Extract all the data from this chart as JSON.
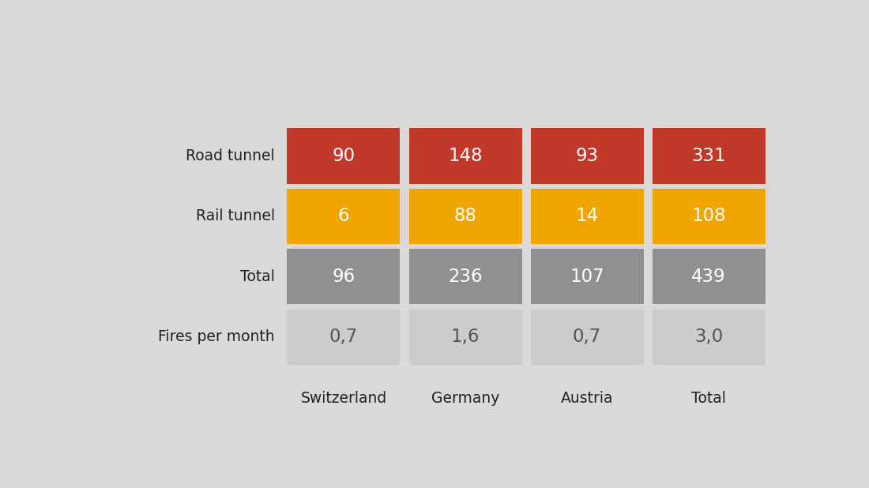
{
  "rows": [
    "Road tunnel",
    "Rail tunnel",
    "Total",
    "Fires per month"
  ],
  "columns": [
    "Switzerland",
    "Germany",
    "Austria",
    "Total"
  ],
  "values": [
    [
      "90",
      "148",
      "93",
      "331"
    ],
    [
      "6",
      "88",
      "14",
      "108"
    ],
    [
      "96",
      "236",
      "107",
      "439"
    ],
    [
      "0,7",
      "1,6",
      "0,7",
      "3,0"
    ]
  ],
  "row_colors": [
    "#c0392b",
    "#f0a500",
    "#909090",
    "#cccccc"
  ],
  "text_colors": [
    "#ffffff",
    "#ffffff",
    "#ffffff",
    "#555555"
  ],
  "background_color": "#d9d9d9",
  "row_label_color": "#222222",
  "col_label_color": "#222222",
  "figsize": [
    11.0,
    6.18
  ]
}
